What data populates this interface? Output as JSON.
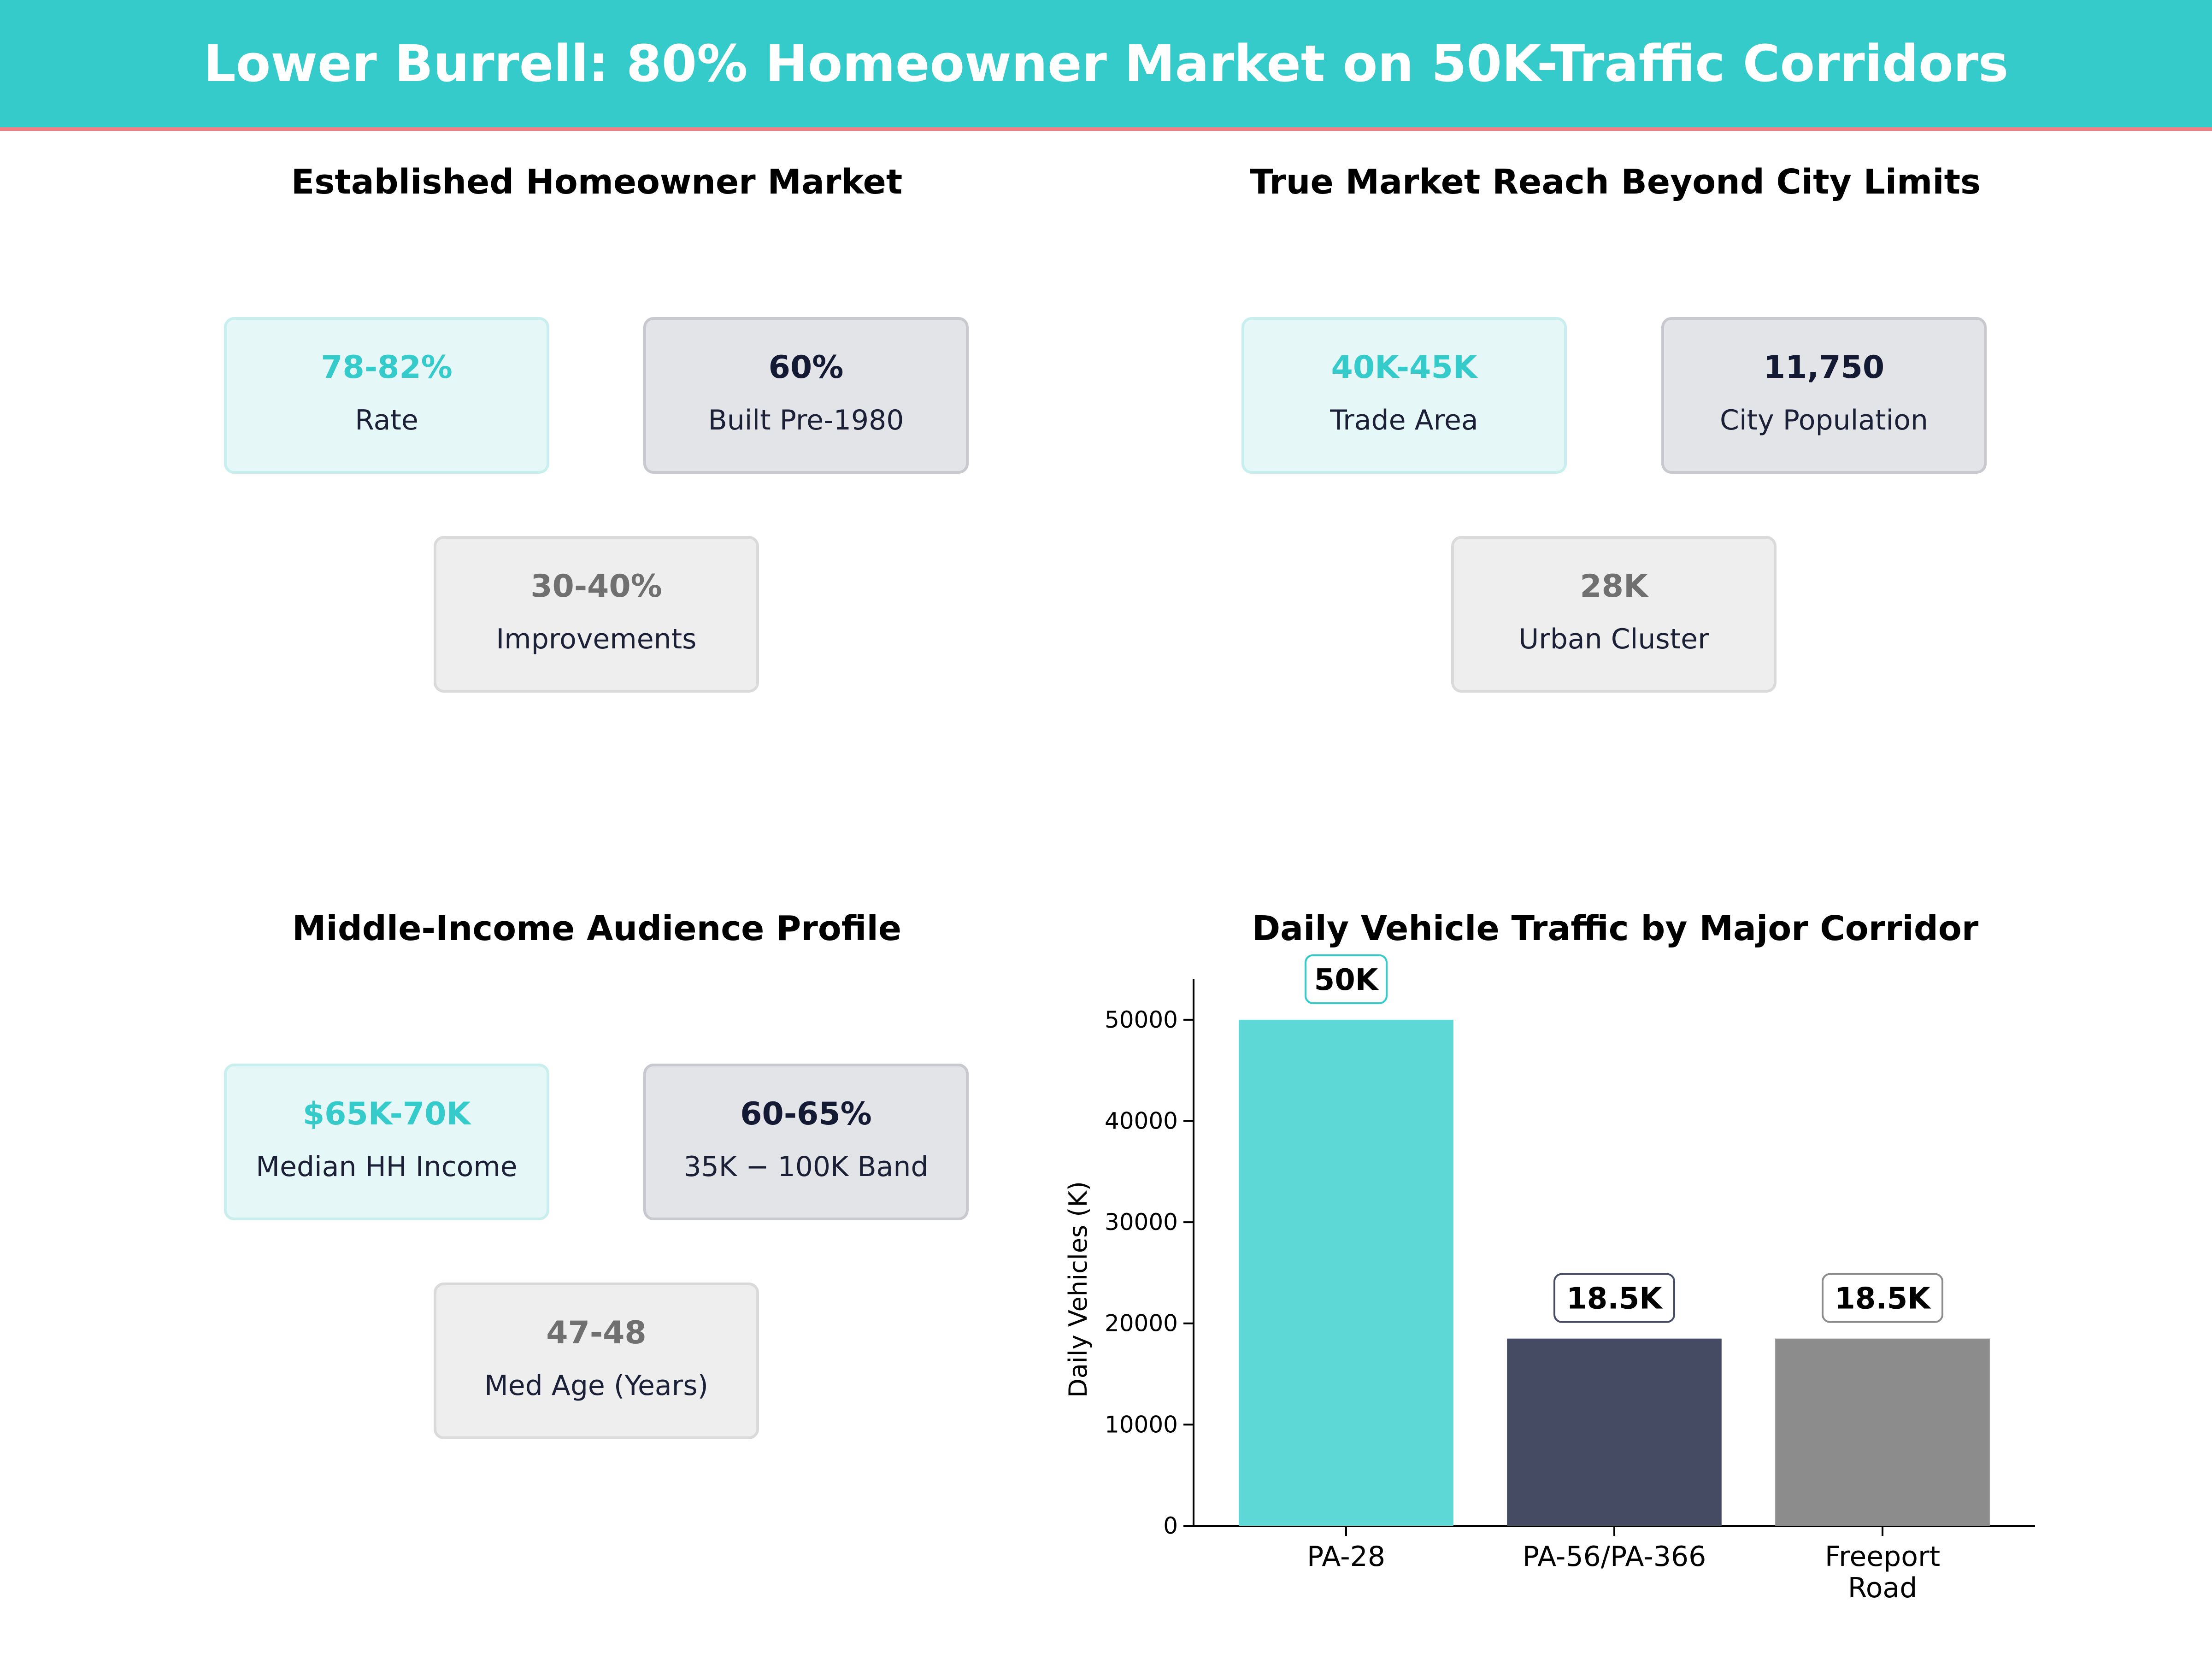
{
  "header": {
    "title": "Lower Burrell: 80% Homeowner Market on 50K-Traffic Corridors"
  },
  "colors": {
    "teal": "#36CBCB",
    "navy": "#454B63",
    "gray": "#8C8C8C",
    "accent_line": "#F07E84"
  },
  "panels": {
    "homeowner": {
      "title": "Established Homeowner Market",
      "cards": [
        {
          "value": "78-82%",
          "label": "Rate"
        },
        {
          "value": "60%",
          "label": "Built Pre-1980"
        },
        {
          "value": "30-40%",
          "label": "Improvements"
        }
      ]
    },
    "reach": {
      "title": "True Market Reach Beyond City Limits",
      "cards": [
        {
          "value": "40K-45K",
          "label": "Trade Area"
        },
        {
          "value": "11,750",
          "label": "City Population"
        },
        {
          "value": "28K",
          "label": "Urban Cluster"
        }
      ]
    },
    "income": {
      "title": "Middle-Income Audience Profile",
      "cards": [
        {
          "value": "$65K-70K",
          "label": "Median HH Income"
        },
        {
          "value": "60-65%",
          "label": "35K − 100K Band"
        },
        {
          "value": "47-48",
          "label": "Med Age (Years)"
        }
      ]
    },
    "traffic": {
      "title": "Daily Vehicle Traffic by Major Corridor"
    }
  },
  "chart_data": {
    "type": "bar",
    "title": "Daily Vehicle Traffic by Major Corridor",
    "xlabel": "",
    "ylabel": "Daily Vehicles (K)",
    "categories": [
      "PA-28",
      "PA-56/PA-366",
      "Freeport Road"
    ],
    "category_lines": [
      [
        "PA-28"
      ],
      [
        "PA-56/PA-366"
      ],
      [
        "Freeport",
        "Road"
      ]
    ],
    "values": [
      50000,
      18500,
      18500
    ],
    "data_labels": [
      "50K",
      "18.5K",
      "18.5K"
    ],
    "bar_colors": [
      "#5DD8D6",
      "#454B63",
      "#8C8C8C"
    ],
    "label_border_colors": [
      "#36CBCB",
      "#454B63",
      "#8C8C8C"
    ],
    "ylim": [
      0,
      54000
    ],
    "yticks": [
      0,
      10000,
      20000,
      30000,
      40000,
      50000
    ],
    "grid": false,
    "legend": "none"
  }
}
